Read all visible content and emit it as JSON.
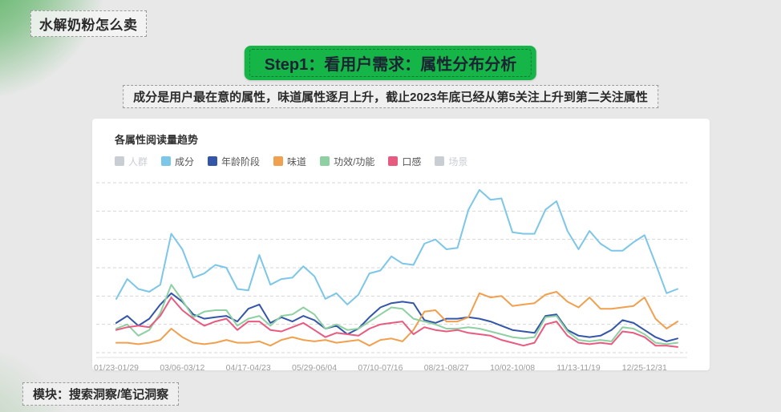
{
  "page": {
    "title": "水解奶粉怎么卖",
    "step_banner": "Step1：看用户需求：属性分布分析",
    "subtitle": "成分是用户最在意的属性，味道属性逐月上升，截止2023年底已经从第5关注上升到第二关注属性",
    "footer_module": "模块：搜索洞察/笔记洞察"
  },
  "colors": {
    "page_bg": "#e8e8e8",
    "accent_green": "#16b548",
    "card_bg": "#ffffff",
    "grid_line": "#d6d6d6",
    "axis_line": "#e0e0e0",
    "tick_text": "#9b9b9b",
    "disabled_legend": "#c9cdd4"
  },
  "chart_data": {
    "type": "line",
    "title": "各属性阅读量趋势",
    "num_points": 52,
    "x_tick_positions": [
      0,
      6,
      12,
      18,
      24,
      30,
      36,
      42,
      48
    ],
    "x_tick_labels": [
      "01/23-01/29",
      "03/06-03/12",
      "04/17-04/23",
      "05/29-06/04",
      "07/10-07/16",
      "08/21-08/27",
      "10/02-10/08",
      "11/13-11/19",
      "12/25-12/31"
    ],
    "ylim": [
      0,
      600
    ],
    "y_gridline_step": 100,
    "grid": "horizontal-dashed",
    "legend_position": "top-left",
    "legend": [
      {
        "name": "人群",
        "color": "#c9c9c9",
        "active": false
      },
      {
        "name": "成分",
        "color": "#7cc6e8",
        "active": true
      },
      {
        "name": "年龄阶段",
        "color": "#3356a8",
        "active": true
      },
      {
        "name": "味道",
        "color": "#f0a04f",
        "active": true
      },
      {
        "name": "功效/功能",
        "color": "#8ed0a2",
        "active": true
      },
      {
        "name": "口感",
        "color": "#e85b80",
        "active": true
      },
      {
        "name": "场景",
        "color": "#c9c9c9",
        "active": false
      }
    ],
    "series": [
      {
        "name": "成分",
        "color": "#7cc6e8",
        "values": [
          190,
          260,
          225,
          215,
          240,
          420,
          365,
          265,
          280,
          310,
          300,
          225,
          220,
          345,
          240,
          260,
          265,
          305,
          270,
          190,
          210,
          170,
          205,
          280,
          290,
          340,
          315,
          310,
          385,
          400,
          365,
          370,
          505,
          575,
          540,
          545,
          425,
          420,
          420,
          505,
          535,
          430,
          365,
          430,
          385,
          360,
          360,
          390,
          415,
          315,
          210,
          225
        ]
      },
      {
        "name": "年龄阶段",
        "color": "#3356a8",
        "values": [
          105,
          130,
          95,
          120,
          170,
          210,
          180,
          135,
          120,
          125,
          130,
          110,
          155,
          170,
          105,
          125,
          110,
          130,
          115,
          85,
          95,
          65,
          85,
          125,
          160,
          175,
          180,
          175,
          115,
          105,
          120,
          120,
          125,
          120,
          110,
          95,
          80,
          75,
          70,
          130,
          135,
          80,
          60,
          55,
          60,
          80,
          115,
          105,
          80,
          55,
          40,
          50
        ]
      },
      {
        "name": "味道",
        "color": "#f0a04f",
        "values": [
          35,
          35,
          30,
          35,
          45,
          85,
          55,
          35,
          30,
          35,
          45,
          35,
          35,
          40,
          25,
          45,
          55,
          45,
          40,
          45,
          35,
          40,
          45,
          25,
          45,
          50,
          40,
          80,
          145,
          150,
          110,
          110,
          125,
          210,
          195,
          200,
          165,
          170,
          175,
          205,
          215,
          180,
          160,
          195,
          155,
          155,
          160,
          165,
          195,
          120,
          85,
          110
        ]
      },
      {
        "name": "功效/功能",
        "color": "#8ed0a2",
        "values": [
          85,
          100,
          60,
          80,
          140,
          240,
          185,
          125,
          145,
          150,
          150,
          95,
          120,
          130,
          95,
          130,
          135,
          160,
          135,
          85,
          100,
          80,
          85,
          110,
          135,
          160,
          155,
          120,
          110,
          100,
          85,
          85,
          90,
          85,
          75,
          65,
          55,
          50,
          55,
          125,
          130,
          75,
          45,
          40,
          45,
          40,
          90,
          85,
          65,
          35,
          30,
          35
        ]
      },
      {
        "name": "口感",
        "color": "#e85b80",
        "values": [
          80,
          90,
          95,
          90,
          130,
          195,
          150,
          120,
          95,
          110,
          120,
          80,
          110,
          110,
          80,
          75,
          90,
          105,
          80,
          55,
          70,
          65,
          60,
          85,
          100,
          105,
          110,
          65,
          90,
          80,
          75,
          80,
          70,
          65,
          60,
          45,
          35,
          25,
          35,
          100,
          110,
          60,
          35,
          30,
          35,
          30,
          75,
          70,
          55,
          25,
          25,
          20
        ]
      }
    ]
  }
}
